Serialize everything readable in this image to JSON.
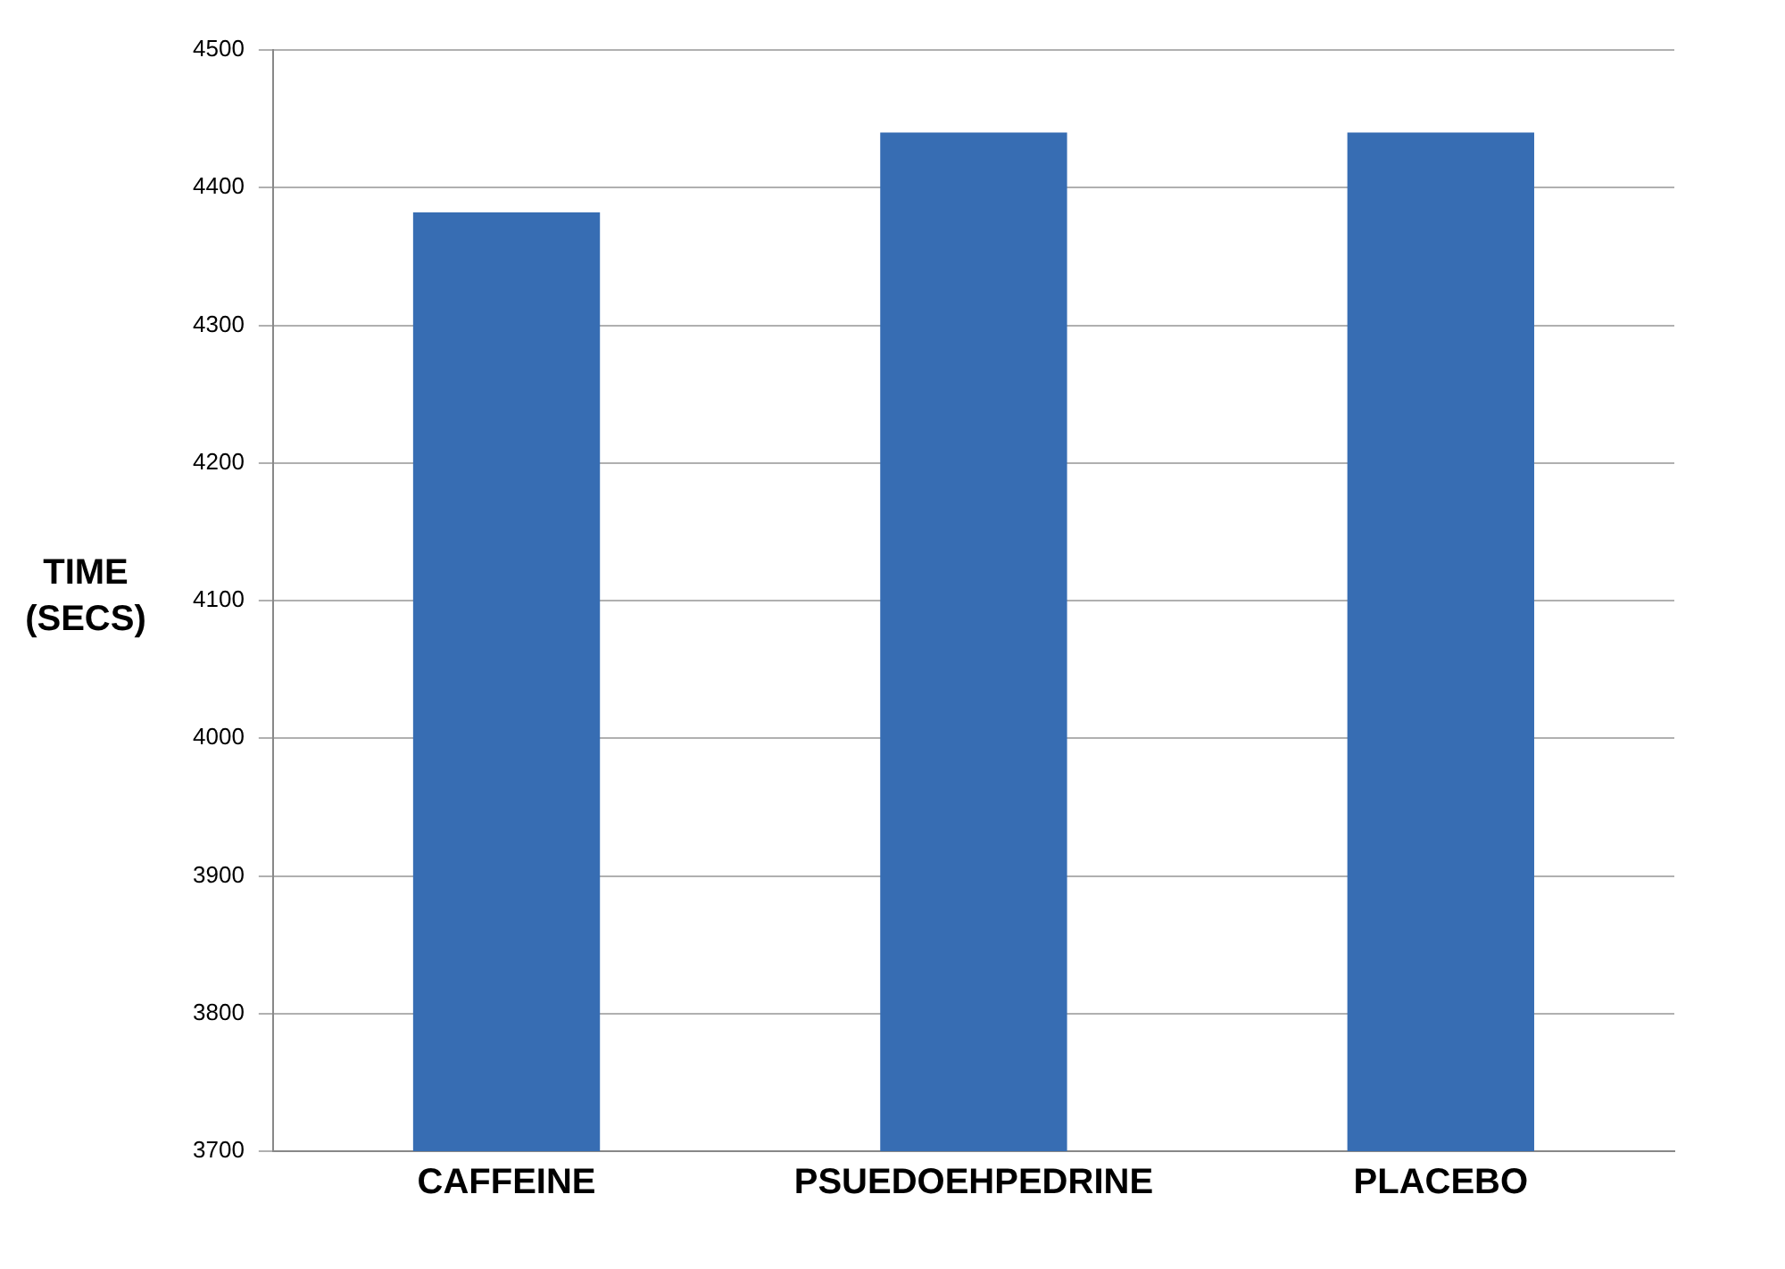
{
  "chart_data": {
    "type": "bar",
    "ylabel": "TIME\n(SECS)",
    "categories": [
      "CAFFEINE",
      "PSUEDOEHPEDRINE",
      "PLACEBO"
    ],
    "values": [
      4382,
      4440,
      4440
    ],
    "color": "#376db3",
    "ylim": [
      3700,
      4500
    ],
    "yticks": [
      3700,
      3800,
      3900,
      4000,
      4100,
      4200,
      4300,
      4400,
      4500
    ],
    "grid": "y",
    "legend": false
  }
}
